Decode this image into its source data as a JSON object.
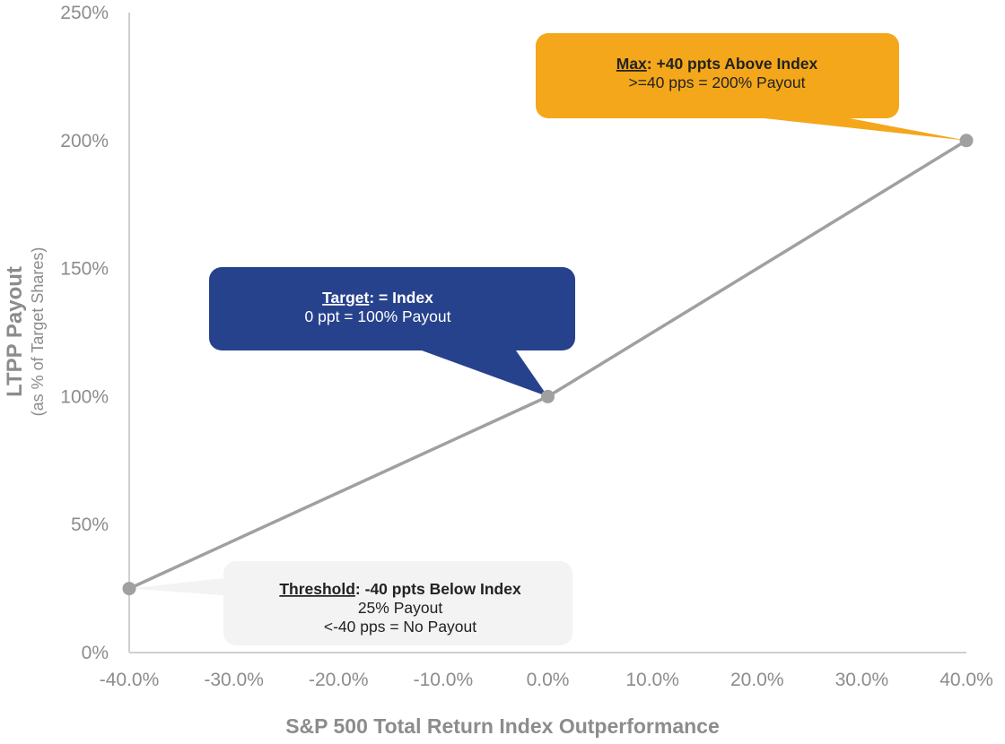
{
  "chart_data": {
    "type": "line",
    "title": "",
    "xlabel": "S&P 500 Total Return Index Outperformance",
    "ylabel": "LTPP Payout",
    "ylabel_sub": "(as % of Target Shares)",
    "x_ticks": [
      "-40.0%",
      "-30.0%",
      "-20.0%",
      "-10.0%",
      "0.0%",
      "10.0%",
      "20.0%",
      "30.0%",
      "40.0%"
    ],
    "y_ticks": [
      "0%",
      "50%",
      "100%",
      "150%",
      "200%",
      "250%"
    ],
    "xlim": [
      -40,
      40
    ],
    "ylim": [
      0,
      250
    ],
    "grid": false,
    "series": [
      {
        "x": [
          -40,
          0,
          40
        ],
        "y": [
          25,
          100,
          200
        ]
      }
    ],
    "annotations": [
      {
        "id": "max",
        "key": "Max",
        "head_rest": ": +40 ppts Above Index",
        "lines": [
          ">=40 pps = 200%  Payout"
        ],
        "point": [
          40,
          200
        ],
        "fill": "#f4a71a",
        "text_color": "#222222"
      },
      {
        "id": "target",
        "key": "Target",
        "head_rest": ": = Index",
        "lines": [
          "0 ppt = 100%  Payout"
        ],
        "point": [
          0,
          100
        ],
        "fill": "#27428c",
        "text_color": "#ffffff"
      },
      {
        "id": "threshold",
        "key": "Threshold",
        "head_rest": ": -40 ppts Below Index",
        "lines": [
          "25% Payout",
          "<-40 pps = No Payout"
        ],
        "point": [
          -40,
          25
        ],
        "fill": "#f3f3f3",
        "text_color": "#222222"
      }
    ],
    "colors": {
      "line": "#a0a0a0",
      "axis": "#cfcfcf",
      "marker": "#a0a0a0"
    }
  }
}
